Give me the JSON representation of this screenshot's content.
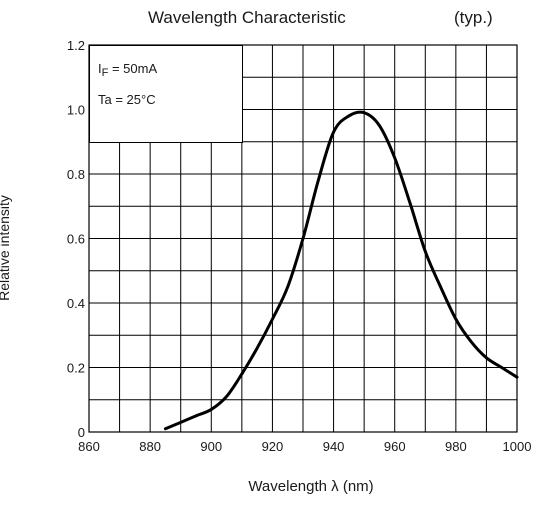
{
  "chart_data": {
    "type": "line",
    "title": "Wavelength Characteristic",
    "title_note": "(typ.)",
    "xlabel": "Wavelength λ (nm)",
    "ylabel": "Relative intensity",
    "xlim": [
      860,
      1000
    ],
    "ylim": [
      0,
      1.2
    ],
    "x_ticks": [
      "860",
      "880",
      "900",
      "920",
      "940",
      "960",
      "980",
      "1000"
    ],
    "y_ticks": [
      "0",
      "0.2",
      "0.4",
      "0.6",
      "0.8",
      "1.0",
      "1.2"
    ],
    "grid": true,
    "annotations": [
      "IF = 50mA",
      "Ta = 25°C"
    ],
    "series": [
      {
        "x": [
          885,
          890,
          895,
          900,
          905,
          910,
          915,
          920,
          925,
          930,
          935,
          940,
          945,
          950,
          955,
          960,
          965,
          970,
          975,
          980,
          985,
          990,
          995,
          1000
        ],
        "values": [
          0.01,
          0.03,
          0.05,
          0.07,
          0.11,
          0.18,
          0.26,
          0.35,
          0.45,
          0.6,
          0.78,
          0.93,
          0.98,
          0.99,
          0.95,
          0.85,
          0.71,
          0.56,
          0.45,
          0.35,
          0.28,
          0.23,
          0.2,
          0.17
        ]
      }
    ]
  }
}
